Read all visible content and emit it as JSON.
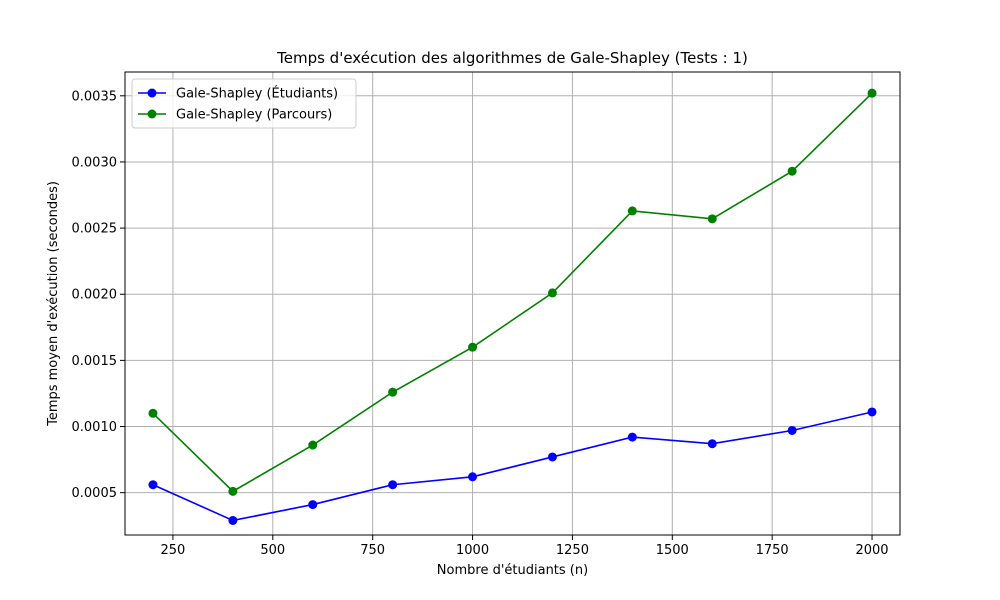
{
  "chart_data": {
    "type": "line",
    "title": "Temps d'exécution des algorithmes de Gale-Shapley (Tests : 1)",
    "xlabel": "Nombre d'étudiants (n)",
    "ylabel": "Temps moyen d'exécution (secondes)",
    "xlim": [
      130,
      2070
    ],
    "ylim": [
      0.00018,
      0.00368
    ],
    "xticks": [
      250,
      500,
      750,
      1000,
      1250,
      1500,
      1750,
      2000
    ],
    "xtick_labels": [
      "250",
      "500",
      "750",
      "1000",
      "1250",
      "1500",
      "1750",
      "2000"
    ],
    "yticks": [
      0.0005,
      0.001,
      0.0015,
      0.002,
      0.0025,
      0.003,
      0.0035
    ],
    "ytick_labels": [
      "0.0005",
      "0.0010",
      "0.0015",
      "0.0020",
      "0.0025",
      "0.0030",
      "0.0035"
    ],
    "grid": true,
    "legend_position": "top-left",
    "x": [
      200,
      400,
      600,
      800,
      1000,
      1200,
      1400,
      1600,
      1800,
      2000
    ],
    "series": [
      {
        "name": "Gale-Shapley (Étudiants)",
        "color": "#0000ff",
        "values": [
          0.00056,
          0.00029,
          0.00041,
          0.00056,
          0.00062,
          0.00077,
          0.00092,
          0.00087,
          0.00097,
          0.00111
        ]
      },
      {
        "name": "Gale-Shapley (Parcours)",
        "color": "#008000",
        "values": [
          0.0011,
          0.00051,
          0.00086,
          0.00126,
          0.0016,
          0.00201,
          0.00263,
          0.00257,
          0.00293,
          0.00352
        ]
      }
    ]
  }
}
